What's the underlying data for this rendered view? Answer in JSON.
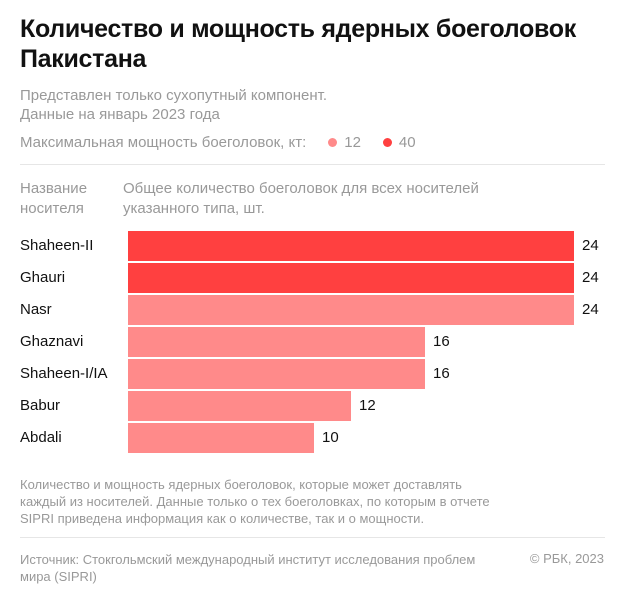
{
  "title": "Количество и мощность ядерных боеголовок Пакистана",
  "subtitle_1": "Представлен только сухопутный компонент.",
  "subtitle_2": "Данные на январь 2023 года",
  "colors": {
    "low": "#ff8a8a",
    "high": "#ff4040"
  },
  "chart_data": {
    "type": "bar",
    "orientation": "horizontal",
    "legend": {
      "title": "Максимальная мощность боеголовок, кт:",
      "entries": [
        {
          "label": "12",
          "color": "#ff8a8a"
        },
        {
          "label": "40",
          "color": "#ff4040"
        }
      ]
    },
    "category_header": "Название носителя",
    "value_header": "Общее количество боеголовок для всех носителей указанного типа, шт.",
    "categories": [
      "Shaheen-II",
      "Ghauri",
      "Nasr",
      "Ghaznavi",
      "Shaheen-I/IA",
      "Babur",
      "Abdali"
    ],
    "values": [
      24,
      24,
      24,
      16,
      16,
      12,
      10
    ],
    "yield_kt": [
      40,
      40,
      12,
      12,
      12,
      12,
      12
    ],
    "xlim": [
      0,
      24
    ]
  },
  "note": "Количество и мощность ядерных боеголовок, которые может доставлять каждый из носителей. Данные только о тех боеголовках, по которым в отчете SIPRI приведена информация как о количестве, так и о мощности.",
  "source": "Источник: Стокгольмский международный институт исследования проблем мира (SIPRI)",
  "copyright": "© РБК, 2023"
}
